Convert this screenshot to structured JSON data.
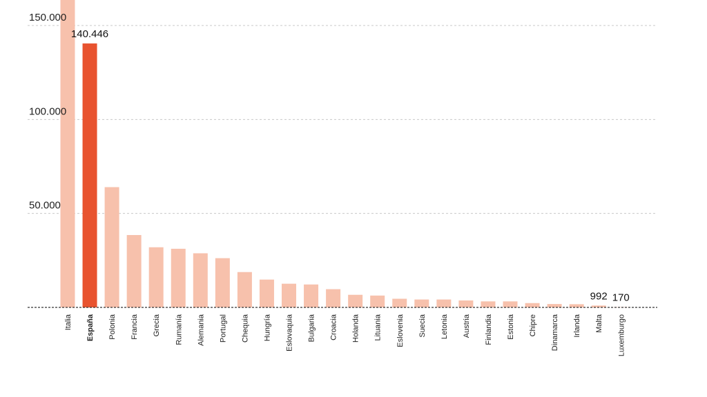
{
  "chart_data": {
    "type": "bar",
    "title": "",
    "xlabel": "",
    "ylabel": "",
    "ylim": [
      0,
      150000
    ],
    "yticks": [
      {
        "value": 50000,
        "label": "50.000"
      },
      {
        "value": 100000,
        "label": "100.000"
      },
      {
        "value": 150000,
        "label": "150.000"
      }
    ],
    "grid": true,
    "highlight": "España",
    "colors": {
      "bar": "#f7c1ac",
      "highlight": "#e8532f",
      "grid": "#c8c8c8",
      "baseline": "#333333"
    },
    "categories": [
      "Italia",
      "España",
      "Polonia",
      "Francia",
      "Grecia",
      "Rumanía",
      "Alemania",
      "Portugal",
      "Chequia",
      "Hungría",
      "Eslovaquia",
      "Bulgaria",
      "Croacia",
      "Holanda",
      "Lituania",
      "Eslovenia",
      "Suecia",
      "Letonia",
      "Austria",
      "Finlandia",
      "Estonia",
      "Chipre",
      "Dinamarca",
      "Irlanda",
      "Malta",
      "Luxemburgo"
    ],
    "values": [
      165000,
      140446,
      64000,
      38500,
      32000,
      31200,
      28800,
      26200,
      18800,
      14800,
      12600,
      12200,
      9700,
      6700,
      6300,
      4600,
      4200,
      4200,
      3700,
      3200,
      3200,
      2300,
      1800,
      1700,
      992,
      170
    ],
    "data_labels": [
      {
        "category": "España",
        "text": "140.446"
      },
      {
        "category": "Malta",
        "text": "992"
      },
      {
        "category": "Luxemburgo",
        "text": "170"
      }
    ]
  }
}
